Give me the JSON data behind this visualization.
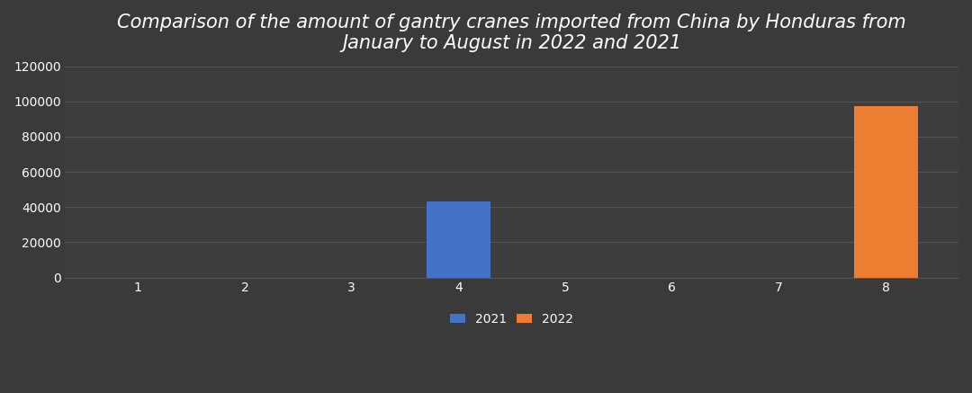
{
  "title": "Comparison of the amount of gantry cranes imported from China by Honduras from\nJanuary to August in 2022 and 2021",
  "background_color": "#3a3a3a",
  "plot_bg_color": "#3d3d3d",
  "grid_color": "#555555",
  "text_color": "#ffffff",
  "months": [
    1,
    2,
    3,
    4,
    5,
    6,
    7,
    8
  ],
  "data_2021": [
    0,
    0,
    0,
    43000,
    0,
    0,
    0,
    0
  ],
  "data_2022": [
    0,
    0,
    0,
    0,
    0,
    0,
    0,
    97500
  ],
  "color_2021": "#4472c4",
  "color_2022": "#ed7d31",
  "ylim": [
    0,
    120000
  ],
  "yticks": [
    0,
    20000,
    40000,
    60000,
    80000,
    100000,
    120000
  ],
  "bar_width": 0.6,
  "title_fontsize": 15,
  "tick_fontsize": 10,
  "legend_fontsize": 10
}
